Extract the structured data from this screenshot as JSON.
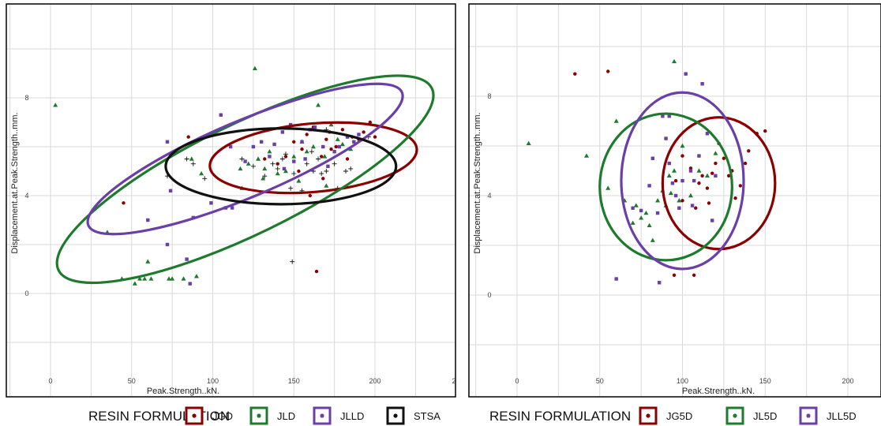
{
  "colors": {
    "JGD": "#8B0000",
    "JLD": "#1E7B2E",
    "JLLD": "#6A3FA8",
    "STSA": "#111111",
    "JG5D": "#8B0000",
    "JL5D": "#1E7B2E",
    "JLL5D": "#6A3FA8",
    "grid": "#d9d9d9",
    "frame": "#000000"
  },
  "chart_data": [
    {
      "type": "scatter",
      "xlabel": "Peak.Strength..kN.",
      "ylabel": "Displacement.at.Peak.Strength..mm.",
      "xlim": [
        -5,
        225
      ],
      "ylim": [
        -3.2,
        11.8
      ],
      "xticks": [
        0,
        50,
        100,
        150,
        200
      ],
      "xtick_labels": [
        "0",
        "50",
        "100",
        "150",
        "200"
      ],
      "yticks": [
        0,
        4,
        8
      ],
      "ytick_labels": [
        "0",
        "4",
        "8"
      ],
      "extra_tick_label": "2",
      "grid": true,
      "legend": {
        "position": "bottom",
        "title": "RESIN FORMULATION",
        "entries": [
          "JGD",
          "JLD",
          "JLLD",
          "STSA"
        ]
      },
      "series": [
        {
          "name": "JGD",
          "marker": "circle",
          "points": [
            [
              45,
              3.7
            ],
            [
              85,
              6.4
            ],
            [
              164,
              0.9
            ],
            [
              140,
              5.3
            ],
            [
              145,
              5.6
            ],
            [
              150,
              6.2
            ],
            [
              155,
              5.9
            ],
            [
              158,
              6.5
            ],
            [
              162,
              6.8
            ],
            [
              167,
              5.6
            ],
            [
              170,
              6.3
            ],
            [
              173,
              5.9
            ],
            [
              176,
              6.0
            ],
            [
              180,
              6.7
            ],
            [
              183,
              5.5
            ],
            [
              186,
              6.4
            ],
            [
              190,
              6.3
            ],
            [
              193,
              6.6
            ],
            [
              197,
              7.0
            ],
            [
              200,
              6.4
            ],
            [
              153,
              5.0
            ],
            [
              168,
              4.7
            ],
            [
              132,
              5.5
            ],
            [
              172,
              6.6
            ],
            [
              160,
              4.0
            ]
          ]
        },
        {
          "name": "JLD",
          "marker": "triangle",
          "points": [
            [
              3,
              7.7
            ],
            [
              35,
              2.5
            ],
            [
              44,
              0.6
            ],
            [
              52,
              0.4
            ],
            [
              55,
              0.6
            ],
            [
              58,
              0.6
            ],
            [
              60,
              1.3
            ],
            [
              62,
              0.6
            ],
            [
              73,
              0.6
            ],
            [
              75,
              0.6
            ],
            [
              82,
              0.6
            ],
            [
              90,
              0.7
            ],
            [
              87,
              5.5
            ],
            [
              93,
              4.9
            ],
            [
              126,
              9.2
            ],
            [
              117,
              5.1
            ],
            [
              122,
              5.3
            ],
            [
              128,
              5.5
            ],
            [
              132,
              5.1
            ],
            [
              135,
              5.8
            ],
            [
              140,
              4.9
            ],
            [
              145,
              5.0
            ],
            [
              150,
              5.6
            ],
            [
              155,
              6.2
            ],
            [
              158,
              5.8
            ],
            [
              162,
              6.0
            ],
            [
              165,
              7.7
            ],
            [
              169,
              5.6
            ],
            [
              173,
              6.9
            ],
            [
              177,
              6.3
            ],
            [
              180,
              6.1
            ],
            [
              185,
              5.9
            ],
            [
              131,
              4.7
            ],
            [
              153,
              4.6
            ],
            [
              118,
              4.3
            ],
            [
              170,
              4.4
            ]
          ]
        },
        {
          "name": "JLLD",
          "marker": "square",
          "points": [
            [
              60,
              3.0
            ],
            [
              72,
              6.2
            ],
            [
              74,
              4.2
            ],
            [
              72,
              2.0
            ],
            [
              84,
              1.4
            ],
            [
              86,
              0.4
            ],
            [
              88,
              3.1
            ],
            [
              99,
              3.7
            ],
            [
              105,
              7.3
            ],
            [
              108,
              3.5
            ],
            [
              112,
              3.5
            ],
            [
              111,
              6.0
            ],
            [
              120,
              5.4
            ],
            [
              125,
              6.0
            ],
            [
              130,
              6.2
            ],
            [
              135,
              5.6
            ],
            [
              138,
              6.1
            ],
            [
              143,
              6.6
            ],
            [
              148,
              6.9
            ],
            [
              150,
              5.4
            ],
            [
              155,
              6.2
            ],
            [
              160,
              6.7
            ],
            [
              163,
              6.8
            ],
            [
              168,
              6.0
            ],
            [
              171,
              5.2
            ],
            [
              175,
              5.8
            ],
            [
              178,
              6.0
            ],
            [
              183,
              6.4
            ],
            [
              187,
              6.2
            ],
            [
              190,
              6.5
            ],
            [
              144,
              5.1
            ],
            [
              157,
              5.5
            ]
          ]
        },
        {
          "name": "STSA",
          "marker": "plus",
          "points": [
            [
              72,
              4.8
            ],
            [
              84,
              5.5
            ],
            [
              88,
              5.3
            ],
            [
              95,
              4.7
            ],
            [
              118,
              5.5
            ],
            [
              125,
              5.2
            ],
            [
              132,
              4.8
            ],
            [
              137,
              5.3
            ],
            [
              140,
              5.1
            ],
            [
              145,
              5.7
            ],
            [
              148,
              4.3
            ],
            [
              150,
              4.9
            ],
            [
              155,
              4.2
            ],
            [
              158,
              5.3
            ],
            [
              162,
              5.0
            ],
            [
              165,
              5.5
            ],
            [
              167,
              4.9
            ],
            [
              170,
              5.0
            ],
            [
              175,
              5.3
            ],
            [
              177,
              4.3
            ],
            [
              182,
              5.0
            ],
            [
              170,
              6.7
            ],
            [
              149,
              1.3
            ],
            [
              185,
              5.1
            ],
            [
              196,
              6.4
            ],
            [
              161,
              5.8
            ],
            [
              143,
              5.5
            ]
          ]
        }
      ],
      "ellipses": [
        {
          "series": "JGD",
          "cx": 162,
          "cy": 5.55,
          "rx": 64,
          "ry": 1.4,
          "angle": -5
        },
        {
          "series": "JLD",
          "cx": 120,
          "cy": 4.67,
          "rx": 128,
          "ry": 2.25,
          "angle": -26
        },
        {
          "series": "JLLD",
          "cx": 120,
          "cy": 5.5,
          "rx": 105,
          "ry": 1.55,
          "angle": -23
        },
        {
          "series": "STSA",
          "cx": 142,
          "cy": 5.2,
          "rx": 71,
          "ry": 1.55,
          "angle": 0
        }
      ]
    },
    {
      "type": "scatter",
      "xlabel": "Peak.Strength..kN.",
      "ylabel": "Displacement.at.Peak.Strength..mm.",
      "xlim": [
        -15,
        215
      ],
      "ylim": [
        -3.2,
        11.8
      ],
      "xticks": [
        0,
        50,
        100,
        150,
        200
      ],
      "xtick_labels": [
        "0",
        "50",
        "100",
        "150",
        "200"
      ],
      "yticks": [
        0,
        4,
        8
      ],
      "ytick_labels": [
        "0",
        "4",
        "8"
      ],
      "grid": true,
      "legend": {
        "position": "bottom",
        "title": "RESIN FORMULATION",
        "entries": [
          "JG5D",
          "JL5D",
          "JLL5D"
        ]
      },
      "series": [
        {
          "name": "JG5D",
          "marker": "circle",
          "points": [
            [
              35,
              8.9
            ],
            [
              55,
              9.0
            ],
            [
              95,
              0.8
            ],
            [
              107,
              0.8
            ],
            [
              100,
              5.6
            ],
            [
              105,
              5.1
            ],
            [
              110,
              4.5
            ],
            [
              112,
              4.8
            ],
            [
              115,
              4.3
            ],
            [
              118,
              4.9
            ],
            [
              120,
              5.3
            ],
            [
              122,
              6.1
            ],
            [
              125,
              5.5
            ],
            [
              128,
              4.8
            ],
            [
              130,
              5.0
            ],
            [
              135,
              4.4
            ],
            [
              138,
              5.3
            ],
            [
              140,
              5.8
            ],
            [
              145,
              6.5
            ],
            [
              150,
              6.6
            ],
            [
              100,
              3.8
            ],
            [
              108,
              3.5
            ],
            [
              96,
              4.6
            ],
            [
              116,
              3.7
            ],
            [
              132,
              3.9
            ]
          ]
        },
        {
          "name": "JL5D",
          "marker": "triangle",
          "points": [
            [
              7,
              6.1
            ],
            [
              42,
              5.6
            ],
            [
              55,
              4.3
            ],
            [
              60,
              7.0
            ],
            [
              65,
              3.8
            ],
            [
              70,
              2.9
            ],
            [
              72,
              3.6
            ],
            [
              75,
              3.1
            ],
            [
              78,
              3.3
            ],
            [
              80,
              2.8
            ],
            [
              82,
              2.2
            ],
            [
              85,
              3.8
            ],
            [
              88,
              4.2
            ],
            [
              90,
              3.6
            ],
            [
              92,
              4.8
            ],
            [
              95,
              5.0
            ],
            [
              98,
              3.8
            ],
            [
              100,
              6.0
            ],
            [
              105,
              4.0
            ],
            [
              110,
              5.0
            ],
            [
              115,
              4.8
            ],
            [
              120,
              5.7
            ],
            [
              95,
              9.4
            ],
            [
              93,
              4.1
            ]
          ]
        },
        {
          "name": "JLL5D",
          "marker": "square",
          "points": [
            [
              60,
              0.65
            ],
            [
              70,
              3.5
            ],
            [
              75,
              3.4
            ],
            [
              80,
              4.4
            ],
            [
              82,
              5.5
            ],
            [
              85,
              3.3
            ],
            [
              88,
              7.2
            ],
            [
              90,
              6.3
            ],
            [
              92,
              5.3
            ],
            [
              94,
              4.5
            ],
            [
              96,
              4.0
            ],
            [
              98,
              3.5
            ],
            [
              100,
              4.6
            ],
            [
              102,
              8.9
            ],
            [
              105,
              5.0
            ],
            [
              107,
              4.6
            ],
            [
              110,
              5.6
            ],
            [
              112,
              8.5
            ],
            [
              115,
              6.5
            ],
            [
              118,
              3.0
            ],
            [
              120,
              4.8
            ],
            [
              86,
              0.5
            ],
            [
              92,
              7.2
            ],
            [
              106,
              3.6
            ]
          ]
        }
      ],
      "ellipses": [
        {
          "series": "JG5D",
          "cx": 122,
          "cy": 4.5,
          "rx": 34,
          "ry": 2.65,
          "angle": 0
        },
        {
          "series": "JL5D",
          "cx": 90,
          "cy": 4.35,
          "rx": 40,
          "ry": 2.95,
          "angle": 0
        },
        {
          "series": "JLL5D",
          "cx": 100,
          "cy": 4.6,
          "rx": 37,
          "ry": 3.55,
          "angle": 0
        }
      ]
    }
  ]
}
